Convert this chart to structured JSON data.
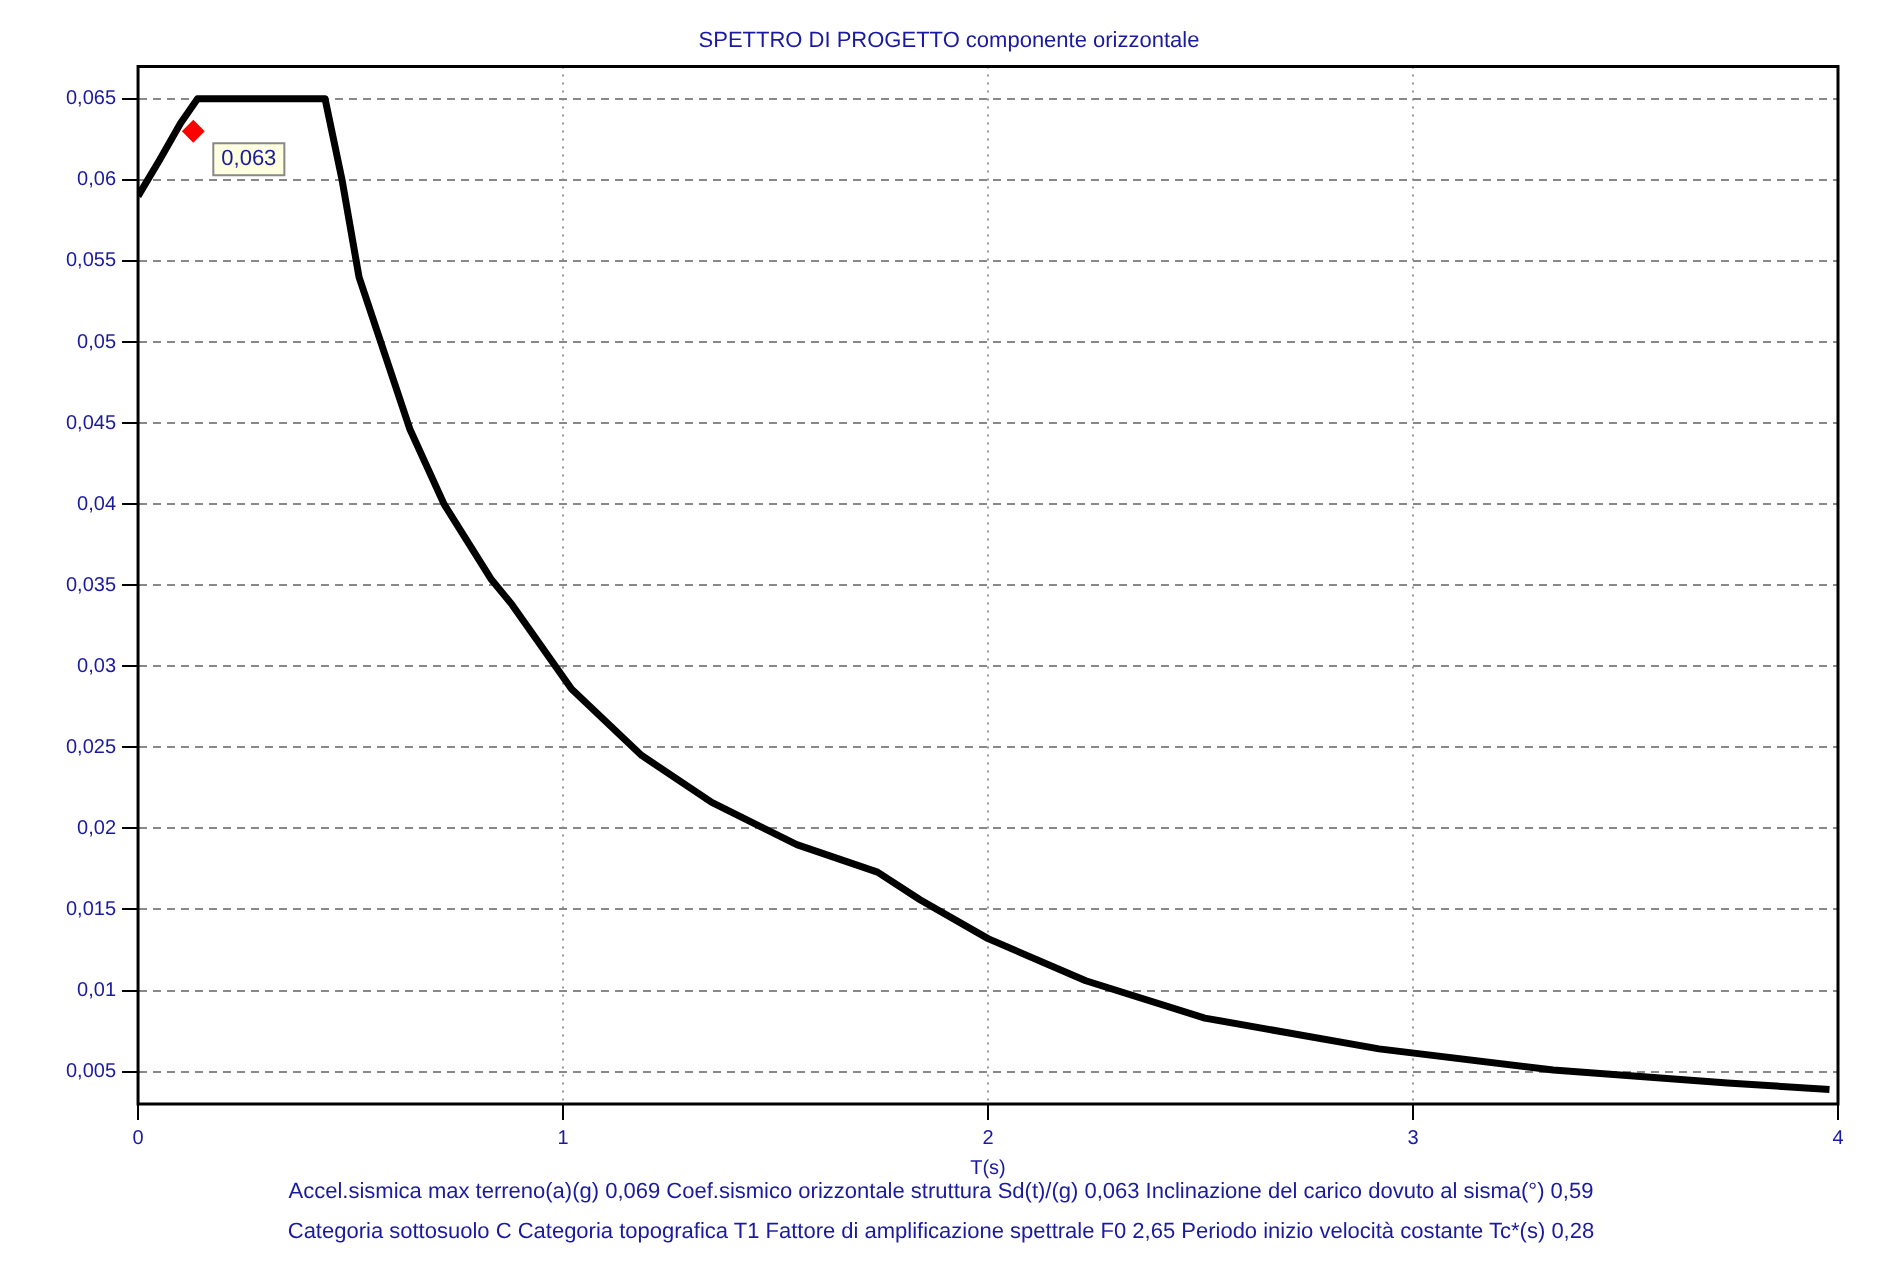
{
  "chart_data": {
    "type": "line",
    "title": "SPETTRO DI PROGETTO componente orizzontale",
    "xlabel": "T(s)",
    "xlim": [
      0,
      4
    ],
    "xticks": [
      0,
      1,
      2,
      3,
      4
    ],
    "ylim": [
      0.003,
      0.067
    ],
    "yticks": [
      {
        "value": 0.005,
        "label": "0,005"
      },
      {
        "value": 0.01,
        "label": "0,01"
      },
      {
        "value": 0.015,
        "label": "0,015"
      },
      {
        "value": 0.02,
        "label": "0,02"
      },
      {
        "value": 0.025,
        "label": "0,025"
      },
      {
        "value": 0.03,
        "label": "0,03"
      },
      {
        "value": 0.035,
        "label": "0,035"
      },
      {
        "value": 0.04,
        "label": "0,04"
      },
      {
        "value": 0.045,
        "label": "0,045"
      },
      {
        "value": 0.05,
        "label": "0,05"
      },
      {
        "value": 0.055,
        "label": "0,055"
      },
      {
        "value": 0.06,
        "label": "0,06"
      },
      {
        "value": 0.065,
        "label": "0,065"
      }
    ],
    "grid": true,
    "legend": false,
    "series": [
      {
        "color": "#000000",
        "marker": "none",
        "x": [
          0,
          0.05,
          0.1,
          0.14,
          0.3,
          0.44,
          0.48,
          0.52,
          0.64,
          0.72,
          0.83,
          0.88,
          1.02,
          1.185,
          1.35,
          1.55,
          1.74,
          1.84,
          2.0,
          2.23,
          2.51,
          2.92,
          3.33,
          3.74,
          3.98
        ],
        "values": [
          0.059,
          0.0612,
          0.0635,
          0.065,
          0.065,
          0.065,
          0.06,
          0.054,
          0.0446,
          0.04,
          0.0354,
          0.0338,
          0.0286,
          0.0245,
          0.0216,
          0.019,
          0.0173,
          0.0156,
          0.0132,
          0.0106,
          0.0083,
          0.0064,
          0.0051,
          0.0043,
          0.0039
        ]
      },
      {
        "type": "scatter",
        "color": "#ff0000",
        "marker": "diamond",
        "x": [
          0.13
        ],
        "values": [
          0.063
        ]
      }
    ],
    "annotations": [
      {
        "text": "0,063",
        "x": 0.13,
        "y": 0.063
      },
      "Accel.sismica max terreno(a)(g) 0,069 Coef.sismico orizzontale struttura Sd(t)/(g) 0,063 Inclinazione del carico dovuto al sisma(°) 0,59",
      "Categoria sottosuolo C Categoria topografica T1 Fattore di amplificazione spettrale F0 2,65 Periodo inizio velocità costante Tc*(s) 0,28"
    ]
  }
}
